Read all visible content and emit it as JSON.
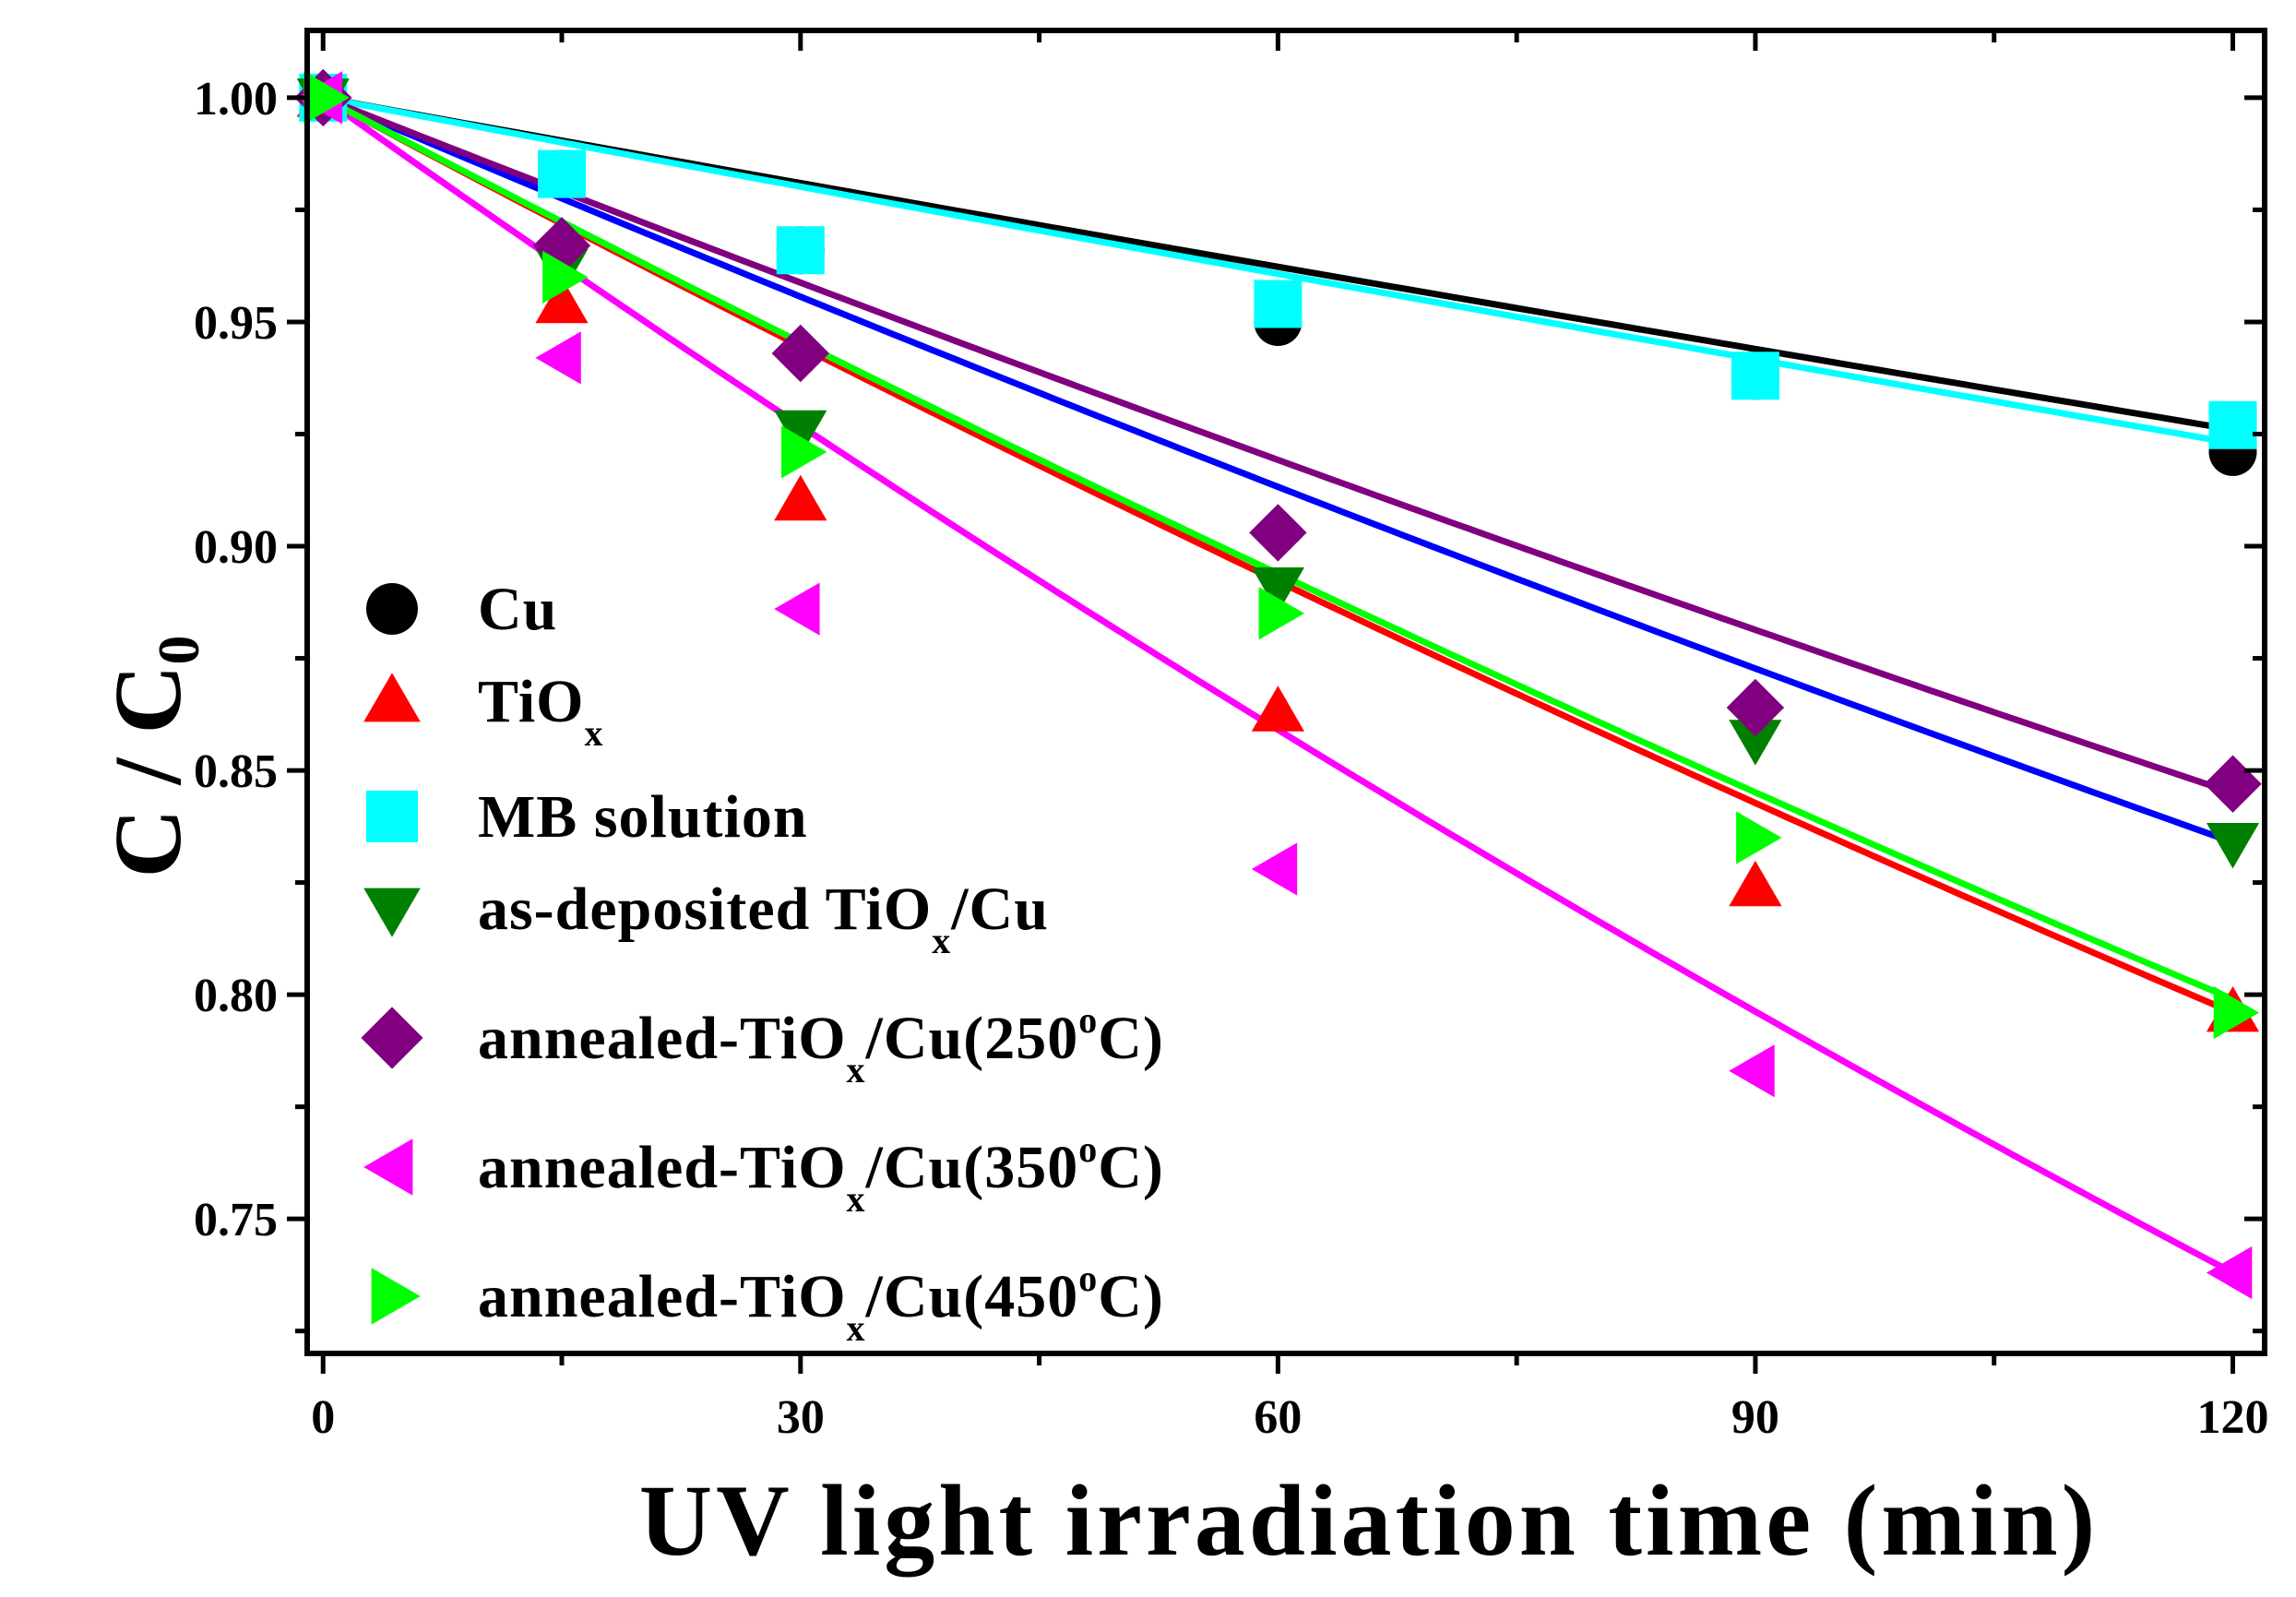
{
  "chart_data": {
    "type": "scatter",
    "title": "",
    "xlabel": "UV light irradiation time (min)",
    "ylabel": {
      "main": "C / C",
      "sub": "0"
    },
    "xlim": [
      -1,
      122
    ],
    "ylim": [
      0.72,
      1.015
    ],
    "xticks": [
      0,
      30,
      60,
      90,
      120
    ],
    "xtick_labels": [
      "0",
      "30",
      "60",
      "90",
      "120"
    ],
    "yticks": [
      0.75,
      0.8,
      0.85,
      0.9,
      0.95,
      1.0
    ],
    "ytick_labels": [
      "0.75",
      "0.80",
      "0.85",
      "0.90",
      "0.95",
      "1.00"
    ],
    "x": [
      0,
      15,
      30,
      60,
      90,
      120
    ],
    "legend_position": "left",
    "series": [
      {
        "name": "Cu",
        "label_parts": [
          [
            "Cu",
            ""
          ]
        ],
        "marker": "circle",
        "color": "#000000",
        "values": [
          1.0,
          0.983,
          0.966,
          0.95,
          0.938,
          0.921
        ],
        "fit_end": 0.926
      },
      {
        "name": "TiOx",
        "label_parts": [
          [
            "TiO",
            ""
          ],
          [
            "x",
            "sub"
          ]
        ],
        "marker": "triangle-up",
        "color": "#ff0000",
        "values": [
          1.0,
          0.954,
          0.91,
          0.863,
          0.824,
          0.796
        ],
        "fit_end": 0.796
      },
      {
        "name": "MB solution",
        "label_parts": [
          [
            "MB solution",
            ""
          ]
        ],
        "marker": "square",
        "color": "#00ffff",
        "values": [
          1.0,
          0.983,
          0.966,
          0.954,
          0.938,
          0.927
        ],
        "fit_end": 0.923
      },
      {
        "name": "as-deposited TiOx/Cu",
        "label_parts": [
          [
            "as-deposited TiO",
            ""
          ],
          [
            "x",
            "sub"
          ],
          [
            "/Cu",
            ""
          ]
        ],
        "marker": "triangle-down",
        "color": "#008000",
        "values": [
          1.0,
          0.962,
          0.926,
          0.891,
          0.857,
          0.834
        ],
        "fit_end": 0.834,
        "fit_color": "#0000ff"
      },
      {
        "name": "annealed-TiOx/Cu(250°C)",
        "label_parts": [
          [
            "annealed-TiO",
            ""
          ],
          [
            "x",
            "sub"
          ],
          [
            "/Cu(250",
            ""
          ],
          [
            "o",
            "sup"
          ],
          [
            "C)",
            ""
          ]
        ],
        "marker": "diamond",
        "color": "#800080",
        "values": [
          1.0,
          0.967,
          0.943,
          0.903,
          0.864,
          0.847
        ],
        "fit_end": 0.845
      },
      {
        "name": "annealed-TiOx/Cu(350°C)",
        "label_parts": [
          [
            "annealed-TiO",
            ""
          ],
          [
            "x",
            "sub"
          ],
          [
            "/Cu(350",
            ""
          ],
          [
            "o",
            "sup"
          ],
          [
            "C)",
            ""
          ]
        ],
        "marker": "triangle-left",
        "color": "#ff00ff",
        "values": [
          1.0,
          0.942,
          0.886,
          0.828,
          0.783,
          0.738
        ],
        "fit_end": 0.738
      },
      {
        "name": "annealed-TiOx/Cu(450°C)",
        "label_parts": [
          [
            "annealed-TiO",
            ""
          ],
          [
            "x",
            "sub"
          ],
          [
            "/Cu(450",
            ""
          ],
          [
            "o",
            "sup"
          ],
          [
            "C)",
            ""
          ]
        ],
        "marker": "triangle-right",
        "color": "#00ff00",
        "values": [
          1.0,
          0.96,
          0.921,
          0.885,
          0.835,
          0.796
        ],
        "fit_end": 0.799
      }
    ]
  }
}
